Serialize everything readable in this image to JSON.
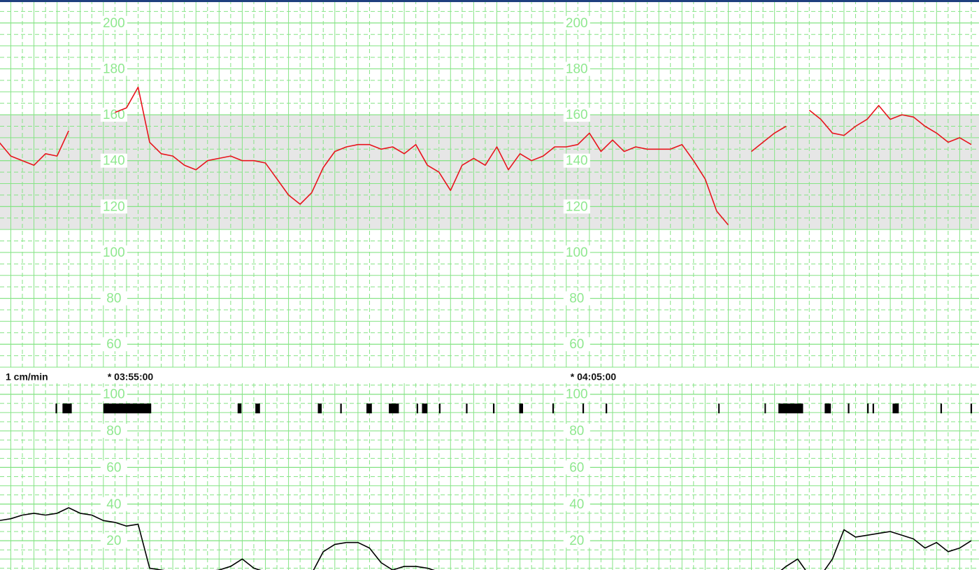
{
  "chart_data": [
    {
      "type": "line",
      "annotation": "1 cm/min",
      "xlim": [
        "03:52:46",
        "04:13:55"
      ],
      "xticks": [
        {
          "value": "03:55:00",
          "label": "* 03:55:00"
        },
        {
          "value": "04:05:00",
          "label": "* 04:05:00"
        }
      ],
      "ylim": [
        50,
        210
      ],
      "yticks": [
        60,
        80,
        100,
        120,
        140,
        160,
        180,
        200
      ],
      "band": [
        110,
        160
      ],
      "grid": true,
      "x": [
        "03:52:45",
        "03:53:00",
        "03:53:15",
        "03:53:30",
        "03:53:45",
        "03:54:00",
        "03:54:15",
        "03:54:30",
        "03:54:45",
        "03:55:00",
        "03:55:15",
        "03:55:30",
        "03:55:45",
        "03:56:00",
        "03:56:15",
        "03:56:30",
        "03:56:45",
        "03:57:00",
        "03:57:15",
        "03:57:30",
        "03:57:45",
        "03:58:00",
        "03:58:15",
        "03:58:30",
        "03:58:45",
        "03:59:00",
        "03:59:15",
        "03:59:30",
        "03:59:45",
        "04:00:00",
        "04:00:15",
        "04:00:30",
        "04:00:45",
        "04:01:00",
        "04:01:15",
        "04:01:30",
        "04:01:45",
        "04:02:00",
        "04:02:15",
        "04:02:30",
        "04:02:45",
        "04:03:00",
        "04:03:15",
        "04:03:30",
        "04:03:45",
        "04:04:00",
        "04:04:15",
        "04:04:30",
        "04:04:45",
        "04:05:00",
        "04:05:15",
        "04:05:30",
        "04:05:45",
        "04:06:00",
        "04:06:15",
        "04:06:30",
        "04:06:45",
        "04:07:00",
        "04:07:15",
        "04:07:30",
        "04:07:45",
        "04:08:00",
        "04:08:15",
        "04:08:30",
        "04:08:45",
        "04:09:00",
        "04:09:15",
        "04:09:30",
        "04:09:45",
        "04:10:00",
        "04:10:15",
        "04:10:30",
        "04:10:45",
        "04:11:00",
        "04:11:15",
        "04:11:30",
        "04:11:45",
        "04:12:00",
        "04:12:15",
        "04:12:30",
        "04:12:45",
        "04:13:00",
        "04:13:15",
        "04:13:30",
        "04:13:45"
      ],
      "series": [
        {
          "color": "#e8141c",
          "values": [
            148,
            142,
            140,
            138,
            143,
            142,
            153,
            null,
            null,
            null,
            161,
            163,
            172,
            148,
            143,
            142,
            138,
            136,
            140,
            141,
            142,
            140,
            140,
            139,
            132,
            125,
            121,
            126,
            137,
            144,
            146,
            147,
            147,
            145,
            146,
            143,
            147,
            138,
            135,
            127,
            138,
            141,
            138,
            146,
            136,
            143,
            140,
            142,
            146,
            146,
            147,
            152,
            144,
            149,
            144,
            146,
            145,
            145,
            145,
            147,
            140,
            132,
            118,
            112,
            null,
            144,
            148,
            152,
            155,
            null,
            162,
            158,
            152,
            151,
            155,
            158,
            164,
            158,
            160,
            159,
            155,
            152,
            148,
            150,
            147
          ]
        }
      ]
    },
    {
      "type": "line",
      "xlim": [
        "03:52:46",
        "04:13:55"
      ],
      "ylim": [
        4,
        106
      ],
      "yticks": [
        20,
        40,
        60,
        80,
        100
      ],
      "grid": true,
      "x": [
        "03:52:45",
        "03:53:00",
        "03:53:15",
        "03:53:30",
        "03:53:45",
        "03:54:00",
        "03:54:15",
        "03:54:30",
        "03:54:45",
        "03:55:00",
        "03:55:15",
        "03:55:30",
        "03:55:45",
        "03:56:00",
        "03:56:15",
        "03:56:30",
        "03:56:45",
        "03:57:00",
        "03:57:15",
        "03:57:30",
        "03:57:45",
        "03:58:00",
        "03:58:15",
        "03:58:30",
        "03:58:45",
        "03:59:00",
        "03:59:15",
        "03:59:30",
        "03:59:45",
        "04:00:00",
        "04:00:15",
        "04:00:30",
        "04:00:45",
        "04:01:00",
        "04:01:15",
        "04:01:30",
        "04:01:45",
        "04:02:00",
        "04:02:15",
        "04:02:30",
        "04:02:45",
        "04:03:00",
        "04:03:15",
        "04:03:30",
        "04:03:45",
        "04:04:00",
        "04:04:15",
        "04:04:30",
        "04:04:45",
        "04:05:00",
        "04:05:15",
        "04:05:30",
        "04:05:45",
        "04:06:00",
        "04:06:15",
        "04:06:30",
        "04:06:45",
        "04:07:00",
        "04:07:15",
        "04:07:30",
        "04:07:45",
        "04:08:00",
        "04:08:15",
        "04:08:30",
        "04:08:45",
        "04:09:00",
        "04:09:15",
        "04:09:30",
        "04:09:45",
        "04:10:00",
        "04:10:15",
        "04:10:30",
        "04:10:45",
        "04:11:00",
        "04:11:15",
        "04:11:30",
        "04:11:45",
        "04:12:00",
        "04:12:15",
        "04:12:30",
        "04:12:45",
        "04:13:00",
        "04:13:15",
        "04:13:30",
        "04:13:45"
      ],
      "series": [
        {
          "color": "#000000",
          "values": [
            31,
            32,
            34,
            35,
            34,
            35,
            38,
            35,
            34,
            31,
            30,
            28,
            29,
            5,
            4,
            3,
            3,
            3,
            3,
            4,
            6,
            10,
            5,
            3,
            2,
            1,
            1,
            2,
            14,
            18,
            19,
            19,
            16,
            8,
            4,
            6,
            6,
            5,
            3,
            1,
            3,
            2,
            2,
            3,
            2,
            1,
            1,
            1,
            2,
            3,
            3,
            2,
            2,
            3,
            2,
            3,
            3,
            2,
            2,
            3,
            2,
            3,
            2,
            2,
            3,
            2,
            2,
            1,
            6,
            10,
            1,
            1,
            10,
            26,
            22,
            23,
            24,
            25,
            23,
            21,
            16,
            19,
            14,
            16,
            20
          ]
        }
      ],
      "movement_marks": [
        [
          "03:53:58",
          "03:54:00"
        ],
        [
          "03:54:07",
          "03:54:19"
        ],
        [
          "03:55:00",
          "03:56:02"
        ],
        [
          "03:57:54",
          "03:57:59"
        ],
        [
          "03:58:17",
          "03:58:23"
        ],
        [
          "03:59:38",
          "03:59:43"
        ],
        [
          "04:00:07",
          "04:00:09"
        ],
        [
          "04:00:41",
          "04:00:48"
        ],
        [
          "04:01:10",
          "04:01:23"
        ],
        [
          "04:01:46",
          "04:01:48"
        ],
        [
          "04:01:53",
          "04:02:00"
        ],
        [
          "04:02:15",
          "04:02:17"
        ],
        [
          "04:02:50",
          "04:02:52"
        ],
        [
          "04:03:25",
          "04:03:27"
        ],
        [
          "04:03:59",
          "04:04:04"
        ],
        [
          "04:04:42",
          "04:04:44"
        ],
        [
          "04:05:21",
          "04:05:23"
        ],
        [
          "04:05:51",
          "04:05:53"
        ],
        [
          "04:08:17",
          "04:08:18"
        ],
        [
          "04:09:17",
          "04:09:18"
        ],
        [
          "04:09:35",
          "04:10:07"
        ],
        [
          "04:10:35",
          "04:10:43"
        ],
        [
          "04:11:05",
          "04:11:07"
        ],
        [
          "04:11:30",
          "04:11:32"
        ],
        [
          "04:11:37",
          "04:11:39"
        ],
        [
          "04:12:03",
          "04:12:11"
        ],
        [
          "04:13:05",
          "04:13:07"
        ],
        [
          "04:13:44",
          "04:13:46"
        ]
      ]
    }
  ]
}
